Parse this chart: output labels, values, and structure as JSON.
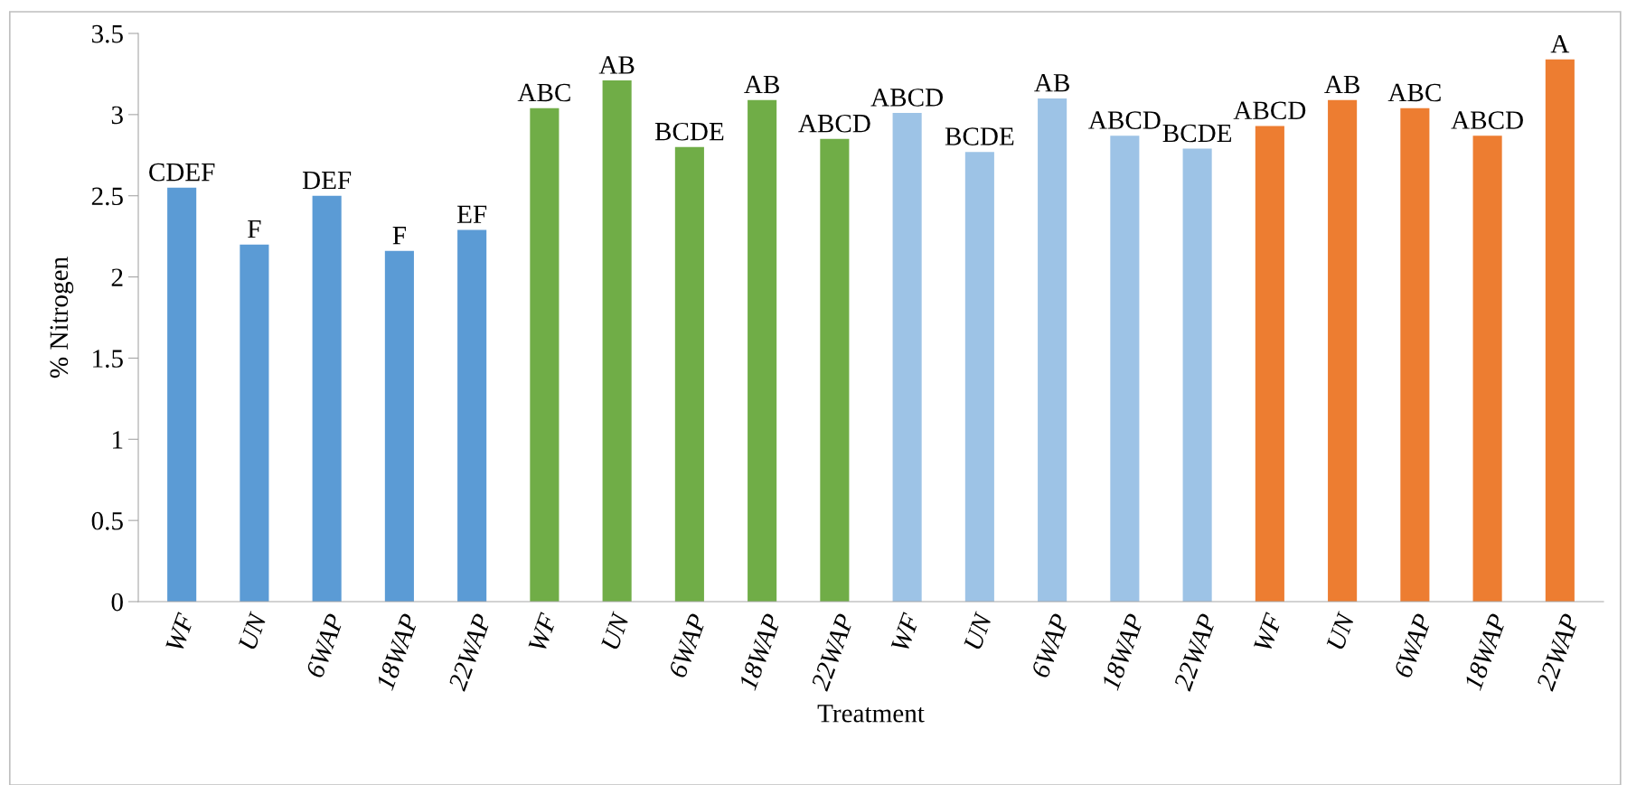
{
  "chart_data": {
    "type": "bar",
    "xlabel": "Treatment",
    "ylabel": "% Nitrogen",
    "categories": [
      "WF",
      "UN",
      "6WAP",
      "18WAP",
      "22WAP",
      "WF",
      "UN",
      "6WAP",
      "18WAP",
      "22WAP",
      "WF",
      "UN",
      "6WAP",
      "18WAP",
      "22WAP",
      "WF",
      "UN",
      "6WAP",
      "18WAP",
      "22WAP"
    ],
    "values": [
      2.55,
      2.2,
      2.5,
      2.16,
      2.29,
      3.04,
      3.21,
      2.8,
      3.09,
      2.85,
      3.01,
      2.77,
      3.1,
      2.87,
      2.79,
      2.93,
      3.09,
      3.04,
      2.87,
      3.34
    ],
    "colors": [
      "#5b9bd5",
      "#5b9bd5",
      "#5b9bd5",
      "#5b9bd5",
      "#5b9bd5",
      "#70ad47",
      "#70ad47",
      "#70ad47",
      "#70ad47",
      "#70ad47",
      "#9dc3e6",
      "#9dc3e6",
      "#9dc3e6",
      "#9dc3e6",
      "#9dc3e6",
      "#ed7d31",
      "#ed7d31",
      "#ed7d31",
      "#ed7d31",
      "#ed7d31"
    ],
    "value_labels": [
      "CDEF",
      "F",
      "DEF",
      "F",
      "EF",
      "ABC",
      "AB",
      "BCDE",
      "AB",
      "ABCD",
      "ABCD",
      "BCDE",
      "AB",
      "ABCD",
      "BCDE",
      "ABCD",
      "AB",
      "ABC",
      "ABCD",
      "A"
    ],
    "ylim": [
      0,
      3.5
    ],
    "yticks": [
      0,
      0.5,
      1,
      1.5,
      2,
      2.5,
      3,
      3.5
    ],
    "grid": false,
    "legend": false
  }
}
